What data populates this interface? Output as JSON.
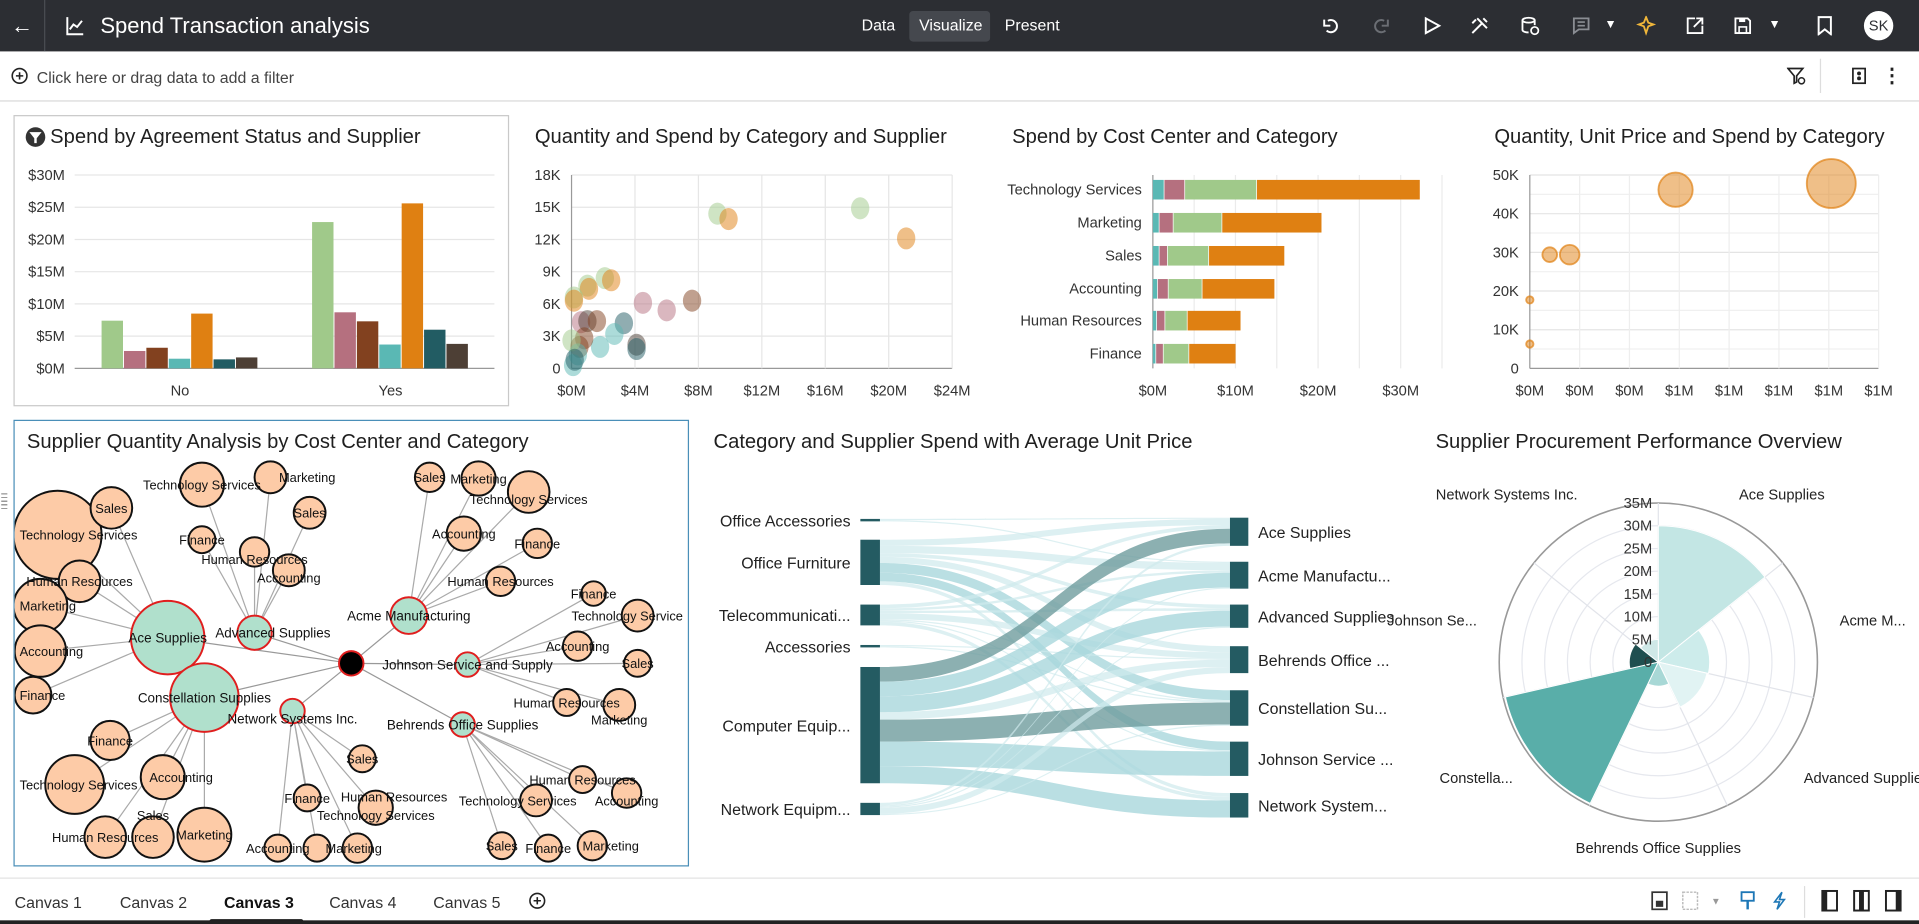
{
  "header": {
    "title": "Spend Transaction analysis",
    "tabs": [
      {
        "label": "Data",
        "active": false
      },
      {
        "label": "Visualize",
        "active": true
      },
      {
        "label": "Present",
        "active": false
      }
    ],
    "avatar_initials": "SK",
    "icons": [
      "back-arrow-icon",
      "workbook-icon",
      "undo-icon",
      "redo-icon",
      "preview-play-icon",
      "tools-icon",
      "data-refresh-icon",
      "comment-icon",
      "auto-insights-icon",
      "export-icon",
      "save-icon",
      "bookmark-icon"
    ]
  },
  "filter_bar": {
    "placeholder": "Click here or drag data to add a filter"
  },
  "palette": {
    "green": "#a0c98a",
    "pink": "#b5707f",
    "brown": "#82411f",
    "teal": "#5ab8b4",
    "orange": "#df8012",
    "dark_teal": "#225c63",
    "dark_brown": "#4d3f35"
  },
  "tiles": {
    "agreement": {
      "title": "Spend by Agreement Status and Supplier",
      "chart_data": {
        "type": "bar",
        "categories": [
          "No",
          "Yes"
        ],
        "y_ticks": [
          "$0M",
          "$5M",
          "$10M",
          "$15M",
          "$20M",
          "$25M",
          "$30M"
        ],
        "ylim": [
          0,
          30
        ],
        "unit": "$M",
        "series": [
          {
            "color": "#a0c98a",
            "values": [
              7.4,
              22.7
            ]
          },
          {
            "color": "#b5707f",
            "values": [
              2.7,
              8.7
            ]
          },
          {
            "color": "#82411f",
            "values": [
              3.2,
              7.3
            ]
          },
          {
            "color": "#5ab8b4",
            "values": [
              1.5,
              3.7
            ]
          },
          {
            "color": "#df8012",
            "values": [
              8.5,
              25.6
            ]
          },
          {
            "color": "#225c63",
            "values": [
              1.4,
              6.0
            ]
          },
          {
            "color": "#4d3f35",
            "values": [
              1.7,
              3.8
            ]
          }
        ]
      }
    },
    "quantity_spend": {
      "title": "Quantity and Spend by Category and Supplier",
      "chart_data": {
        "type": "scatter",
        "x_ticks": [
          "$0M",
          "$4M",
          "$8M",
          "$12M",
          "$16M",
          "$20M",
          "$24M"
        ],
        "y_ticks": [
          "0",
          "3K",
          "6K",
          "9K",
          "12K",
          "15K",
          "18K"
        ],
        "xlim": [
          0,
          24
        ],
        "ylim": [
          0,
          18
        ],
        "x_unit": "$M",
        "y_unit": "K",
        "points": [
          {
            "x": 9.2,
            "y": 14.4,
            "color": "#a0c98a"
          },
          {
            "x": 9.9,
            "y": 13.9,
            "color": "#df8012"
          },
          {
            "x": 18.2,
            "y": 14.9,
            "color": "#a0c98a"
          },
          {
            "x": 21.1,
            "y": 12.1,
            "color": "#df8012"
          },
          {
            "x": 2.1,
            "y": 8.4,
            "color": "#a0c98a"
          },
          {
            "x": 2.5,
            "y": 8.2,
            "color": "#df8012"
          },
          {
            "x": 1.0,
            "y": 7.7,
            "color": "#a0c98a"
          },
          {
            "x": 1.1,
            "y": 7.4,
            "color": "#df8012"
          },
          {
            "x": 0.15,
            "y": 6.6,
            "color": "#a0c98a"
          },
          {
            "x": 0.15,
            "y": 6.3,
            "color": "#df8012"
          },
          {
            "x": 4.5,
            "y": 6.1,
            "color": "#b5707f"
          },
          {
            "x": 6.0,
            "y": 5.4,
            "color": "#b5707f"
          },
          {
            "x": 7.6,
            "y": 6.3,
            "color": "#82411f"
          },
          {
            "x": 0.6,
            "y": 4.3,
            "color": "#b5707f"
          },
          {
            "x": 1.0,
            "y": 4.4,
            "color": "#4d3f35"
          },
          {
            "x": 1.6,
            "y": 4.4,
            "color": "#82411f"
          },
          {
            "x": 3.3,
            "y": 4.2,
            "color": "#225c63"
          },
          {
            "x": 2.7,
            "y": 3.2,
            "color": "#5ab8b4"
          },
          {
            "x": 4.1,
            "y": 2.2,
            "color": "#4d3f35"
          },
          {
            "x": 4.1,
            "y": 1.8,
            "color": "#225c63"
          },
          {
            "x": 1.8,
            "y": 2.0,
            "color": "#5ab8b4"
          },
          {
            "x": 0.8,
            "y": 2.8,
            "color": "#82411f"
          },
          {
            "x": 0.5,
            "y": 2.0,
            "color": "#82411f"
          },
          {
            "x": 0.4,
            "y": 1.3,
            "color": "#5ab8b4"
          },
          {
            "x": 0.1,
            "y": 0.3,
            "color": "#5ab8b4"
          },
          {
            "x": 0.0,
            "y": 2.6,
            "color": "#a0c98a"
          },
          {
            "x": 0.2,
            "y": 0.8,
            "color": "#225c63"
          }
        ]
      }
    },
    "cost_center": {
      "title": "Spend by Cost Center and Category",
      "chart_data": {
        "type": "bar",
        "orientation": "horizontal",
        "stacked": true,
        "categories": [
          "Technology Services",
          "Marketing",
          "Sales",
          "Accounting",
          "Human Resources",
          "Finance"
        ],
        "x_ticks": [
          "$0M",
          "$10M",
          "$20M",
          "$30M"
        ],
        "xlim": [
          0,
          35
        ],
        "unit": "$M",
        "series": [
          {
            "color": "#5ab8b4",
            "values": [
              1.4,
              0.8,
              0.8,
              0.6,
              0.5,
              0.4
            ]
          },
          {
            "color": "#b5707f",
            "values": [
              2.5,
              1.7,
              1.0,
              1.3,
              1.0,
              0.9
            ]
          },
          {
            "color": "#a0c98a",
            "values": [
              8.7,
              5.9,
              5.0,
              4.1,
              2.7,
              3.1
            ]
          },
          {
            "color": "#df8012",
            "values": [
              19.8,
              12.1,
              9.2,
              8.8,
              6.5,
              5.7
            ]
          }
        ]
      }
    },
    "unit_price": {
      "title": "Quantity, Unit Price and Spend by Category",
      "chart_data": {
        "type": "scatter",
        "bubble": true,
        "x_ticks": [
          "$0M",
          "$0M",
          "$0M",
          "$1M",
          "$1M",
          "$1M",
          "$1M",
          "$1M"
        ],
        "y_ticks": [
          "0",
          "10K",
          "20K",
          "30K",
          "40K",
          "50K"
        ],
        "xlim": [
          0,
          1.4
        ],
        "ylim": [
          0,
          50
        ],
        "y_unit": "K",
        "color": "#df8012",
        "points": [
          {
            "x": 0.585,
            "y": 46.2,
            "size": 14
          },
          {
            "x": 1.21,
            "y": 47.8,
            "size": 20
          },
          {
            "x": 0.08,
            "y": 29.4,
            "size": 6
          },
          {
            "x": 0.16,
            "y": 29.4,
            "size": 8
          },
          {
            "x": 0.0,
            "y": 17.7,
            "size": 3
          },
          {
            "x": 0.0,
            "y": 6.3,
            "size": 3
          }
        ]
      }
    },
    "network": {
      "title": "Supplier Quantity Analysis by Cost Center and Category",
      "suppliers": [
        "Ace Supplies",
        "Constellation Supplies",
        "Advanced Supplies",
        "Acme Manufacturing",
        "Johnson Service and Supply",
        "Network Systems Inc.",
        "Behrends Office Supplies"
      ],
      "children": {
        "Ace Supplies": [
          "Technology Services",
          "Sales",
          "Human Resources",
          "Marketing",
          "Accounting",
          "Finance"
        ],
        "Advanced Supplies": [
          "Technology Services",
          "Marketing",
          "Sales",
          "Finance",
          "Human Resources",
          "Accounting"
        ],
        "Acme Manufacturing": [
          "Sales",
          "Marketing",
          "Technology Services",
          "Accounting",
          "Finance",
          "Human Resources"
        ],
        "Johnson Service and Supply": [
          "Finance",
          "Technology Service",
          "Accounting",
          "Sales",
          "Human Resources",
          "Marketing"
        ],
        "Behrends Office Supplies": [
          "Human Resources",
          "Accounting",
          "Technology Services",
          "Sales",
          "Finance",
          "Marketing"
        ],
        "Network Systems Inc.": [
          "Sales",
          "Finance",
          "Technology Services",
          "Accounting",
          "Marketing",
          "Human Resources"
        ],
        "Constellation Supplies": [
          "Finance",
          "Technology Services",
          "Accounting",
          "Human Resources",
          "Sales",
          "Marketing"
        ]
      }
    },
    "sankey": {
      "title": "Category and Supplier Spend with Average Unit Price",
      "chart_data": {
        "type": "sankey",
        "sources": [
          "Office Accessories",
          "Office Furniture",
          "Telecommunicati...",
          "Accessories",
          "Computer Equip...",
          "Network Equipm..."
        ],
        "targets": [
          "Ace Supplies",
          "Acme Manufactu...",
          "Advanced Supplies",
          "Behrends Office ...",
          "Constellation Su...",
          "Johnson Service ...",
          "Network System..."
        ],
        "links": [
          {
            "s": 0,
            "t": 0,
            "v": 1
          },
          {
            "s": 0,
            "t": 1,
            "v": 1
          },
          {
            "s": 1,
            "t": 0,
            "v": 5
          },
          {
            "s": 1,
            "t": 1,
            "v": 6
          },
          {
            "s": 1,
            "t": 2,
            "v": 3
          },
          {
            "s": 1,
            "t": 3,
            "v": 5
          },
          {
            "s": 1,
            "t": 4,
            "v": 8
          },
          {
            "s": 1,
            "t": 5,
            "v": 7
          },
          {
            "s": 1,
            "t": 6,
            "v": 3
          },
          {
            "s": 2,
            "t": 0,
            "v": 3
          },
          {
            "s": 2,
            "t": 1,
            "v": 2
          },
          {
            "s": 2,
            "t": 2,
            "v": 2
          },
          {
            "s": 2,
            "t": 3,
            "v": 5
          },
          {
            "s": 2,
            "t": 4,
            "v": 1
          },
          {
            "s": 2,
            "t": 5,
            "v": 1
          },
          {
            "s": 2,
            "t": 6,
            "v": 3
          },
          {
            "s": 3,
            "t": 3,
            "v": 1
          },
          {
            "s": 3,
            "t": 4,
            "v": 1
          },
          {
            "s": 4,
            "t": 0,
            "v": 12
          },
          {
            "s": 4,
            "t": 1,
            "v": 12
          },
          {
            "s": 4,
            "t": 2,
            "v": 13
          },
          {
            "s": 4,
            "t": 3,
            "v": 6
          },
          {
            "s": 4,
            "t": 4,
            "v": 18
          },
          {
            "s": 4,
            "t": 5,
            "v": 20
          },
          {
            "s": 4,
            "t": 6,
            "v": 14
          },
          {
            "s": 5,
            "t": 0,
            "v": 2
          },
          {
            "s": 5,
            "t": 1,
            "v": 1
          },
          {
            "s": 5,
            "t": 2,
            "v": 1
          },
          {
            "s": 5,
            "t": 3,
            "v": 5
          },
          {
            "s": 5,
            "t": 4,
            "v": 1
          }
        ]
      }
    },
    "polar": {
      "title": "Supplier Procurement Performance Overview",
      "chart_data": {
        "type": "polar-bar",
        "r_ticks": [
          "0",
          "5M",
          "10M",
          "15M",
          "20M",
          "25M",
          "30M",
          "35M"
        ],
        "rlim": [
          0,
          35
        ],
        "unit": "M",
        "categories": [
          "Ace Supplies",
          "Acme M...",
          "Advanced Supplies",
          "Behrends Office Supplies",
          "Constella...",
          "Johnson Se...",
          "Network Systems Inc."
        ],
        "values": [
          30,
          11.3,
          11,
          5.3,
          34.5,
          6.4,
          5
        ],
        "colors": [
          "#c3e6e4",
          "#cdeceb",
          "#e1f3f3",
          "#a8d8d6",
          "#59aea9",
          "#1f4f50",
          "#cfe8e7"
        ]
      }
    }
  },
  "canvas_tabs": [
    {
      "label": "Canvas 1",
      "active": false
    },
    {
      "label": "Canvas 2",
      "active": false
    },
    {
      "label": "Canvas 3",
      "active": true
    },
    {
      "label": "Canvas 4",
      "active": false
    },
    {
      "label": "Canvas 5",
      "active": false
    }
  ]
}
